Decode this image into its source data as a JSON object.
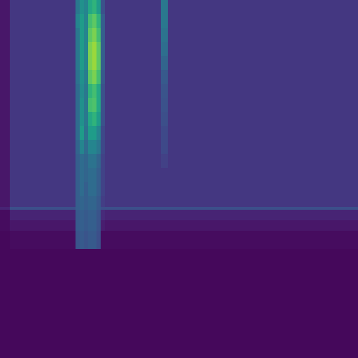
{
  "chart_data": {
    "type": "heatmap",
    "color": "Viridis",
    "tick_labels": false,
    "xlim": [
      0,
      512
    ],
    "ylim": [
      512,
      0
    ],
    "zlim": [
      0,
      100
    ],
    "x": [
      0,
      14,
      40,
      80,
      108,
      114,
      120,
      126,
      132,
      138,
      144,
      150,
      180,
      230,
      240,
      300,
      400,
      512
    ],
    "y": [
      0,
      20,
      40,
      60,
      80,
      100,
      120,
      140,
      160,
      180,
      200,
      220,
      240,
      260,
      280,
      296,
      300,
      315,
      330,
      356,
      512
    ],
    "cells": [
      [
        6,
        16,
        16,
        16,
        40,
        50,
        45,
        60,
        65,
        55,
        25,
        16,
        16,
        40,
        16,
        16,
        16
      ],
      [
        6,
        16,
        16,
        16,
        45,
        55,
        45,
        70,
        75,
        65,
        30,
        16,
        16,
        40,
        16,
        16,
        16
      ],
      [
        6,
        16,
        16,
        16,
        40,
        55,
        45,
        75,
        80,
        70,
        30,
        16,
        16,
        38,
        16,
        16,
        16
      ],
      [
        6,
        16,
        16,
        16,
        40,
        55,
        45,
        80,
        85,
        75,
        30,
        16,
        16,
        36,
        16,
        16,
        16
      ],
      [
        6,
        16,
        16,
        16,
        40,
        55,
        45,
        80,
        85,
        75,
        30,
        16,
        16,
        32,
        16,
        16,
        16
      ],
      [
        6,
        16,
        16,
        16,
        38,
        50,
        42,
        75,
        80,
        70,
        28,
        16,
        16,
        28,
        16,
        16,
        16
      ],
      [
        6,
        16,
        16,
        16,
        35,
        48,
        40,
        65,
        70,
        60,
        25,
        16,
        16,
        26,
        16,
        16,
        16
      ],
      [
        6,
        16,
        16,
        16,
        35,
        50,
        40,
        70,
        72,
        60,
        25,
        16,
        16,
        25,
        16,
        16,
        16
      ],
      [
        6,
        16,
        16,
        16,
        35,
        50,
        40,
        60,
        65,
        55,
        25,
        16,
        16,
        24,
        16,
        16,
        16
      ],
      [
        6,
        16,
        16,
        16,
        35,
        55,
        38,
        55,
        55,
        45,
        22,
        16,
        16,
        22,
        16,
        16,
        16
      ],
      [
        6,
        16,
        16,
        16,
        32,
        45,
        35,
        45,
        45,
        40,
        22,
        16,
        16,
        22,
        16,
        16,
        16
      ],
      [
        6,
        16,
        16,
        16,
        30,
        35,
        32,
        38,
        38,
        32,
        20,
        16,
        16,
        19,
        16,
        16,
        16
      ],
      [
        6,
        16,
        16,
        16,
        30,
        35,
        32,
        35,
        35,
        30,
        20,
        16,
        16,
        16,
        16,
        16,
        16
      ],
      [
        6,
        16,
        16,
        16,
        30,
        35,
        30,
        35,
        35,
        30,
        20,
        16,
        16,
        16,
        16,
        16,
        16
      ],
      [
        6,
        16,
        16,
        16,
        30,
        32,
        30,
        32,
        32,
        28,
        18,
        16,
        16,
        16,
        16,
        16,
        16
      ],
      [
        10,
        24,
        24,
        24,
        30,
        32,
        30,
        32,
        32,
        28,
        24,
        24,
        24,
        24,
        24,
        24,
        24
      ],
      [
        3,
        10,
        10,
        10,
        28,
        30,
        28,
        30,
        30,
        26,
        12,
        10,
        10,
        10,
        10,
        10,
        10
      ],
      [
        3,
        6,
        6,
        6,
        28,
        30,
        28,
        30,
        30,
        26,
        8,
        6,
        6,
        6,
        6,
        6,
        6
      ],
      [
        2,
        3,
        3,
        3,
        26,
        28,
        26,
        28,
        28,
        24,
        3,
        3,
        3,
        3,
        3,
        3,
        3
      ],
      [
        2,
        2,
        2,
        2,
        2,
        2,
        2,
        2,
        2,
        2,
        2,
        2,
        2,
        2,
        2,
        2,
        2
      ]
    ]
  }
}
